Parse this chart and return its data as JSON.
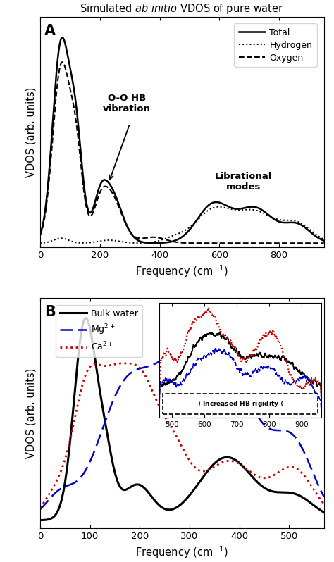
{
  "label_A": "A",
  "label_B": "B",
  "xlabel": "Frequency (cm$^{-1}$)",
  "ylabel": "VDOS (arb. units)",
  "legend_A": [
    "Total",
    "Hydrogen",
    "Oxygen"
  ],
  "legend_B": [
    "Bulk water",
    "Mg$^{2+}$",
    "Ca$^{2+}$"
  ],
  "color_mg": "#0000cc",
  "color_ca": "#cc0000",
  "inset_label": "> Increased HB rigidity >",
  "background": "#ffffff"
}
